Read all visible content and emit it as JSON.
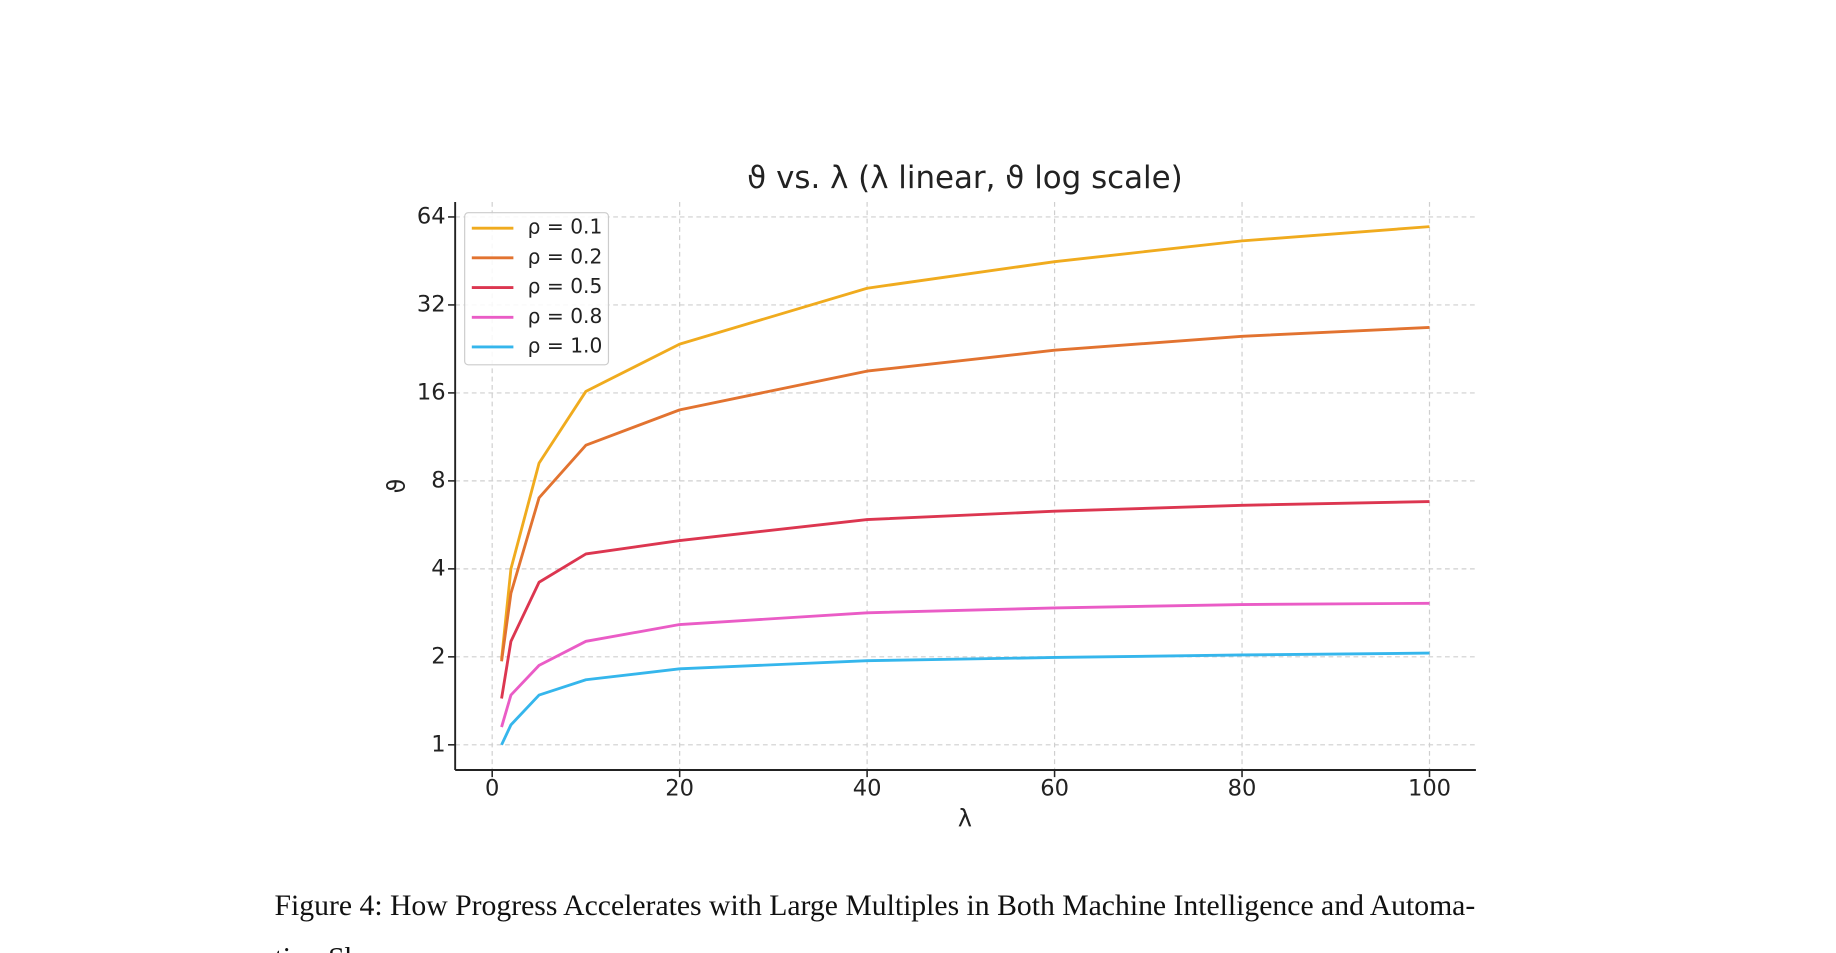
{
  "chart_data": {
    "type": "line",
    "title": "ϑ vs. λ (λ linear, ϑ log scale)",
    "x_label": "λ",
    "y_label": "ϑ",
    "x": [
      1,
      2,
      5,
      10,
      20,
      40,
      60,
      80,
      100
    ],
    "series": [
      {
        "name": "ρ = 0.1",
        "color": "#f0ab1e",
        "values": [
          1.96,
          4.0,
          9.2,
          16.2,
          23.5,
          36.5,
          45,
          53,
          59.3
        ]
      },
      {
        "name": "ρ = 0.2",
        "color": "#e27330",
        "values": [
          1.93,
          3.3,
          7.0,
          10.6,
          14.0,
          19.0,
          22.4,
          25.0,
          26.8
        ]
      },
      {
        "name": "ρ = 0.5",
        "color": "#dc3650",
        "values": [
          1.44,
          2.26,
          3.6,
          4.5,
          5.0,
          5.9,
          6.3,
          6.6,
          6.8
        ]
      },
      {
        "name": "ρ = 0.8",
        "color": "#ea5cc6",
        "values": [
          1.15,
          1.48,
          1.87,
          2.26,
          2.58,
          2.83,
          2.94,
          3.02,
          3.05
        ]
      },
      {
        "name": "ρ = 1.0",
        "color": "#35b6ec",
        "values": [
          1.0,
          1.17,
          1.48,
          1.67,
          1.82,
          1.94,
          1.99,
          2.03,
          2.06
        ]
      }
    ],
    "xlim": [
      -3.95,
      104.95
    ],
    "xticks": [
      0,
      20,
      40,
      60,
      80,
      100
    ],
    "ylim": [
      0.82,
      72
    ],
    "yticks": [
      1,
      2,
      4,
      8,
      16,
      32,
      64
    ],
    "y_scale": "log",
    "grid": true,
    "legend": "upper left"
  },
  "caption": [
    "Figure 4: How Progress Accelerates with Large Multiples in Both Machine Intelligence and Automa-",
    "tion Shares."
  ]
}
